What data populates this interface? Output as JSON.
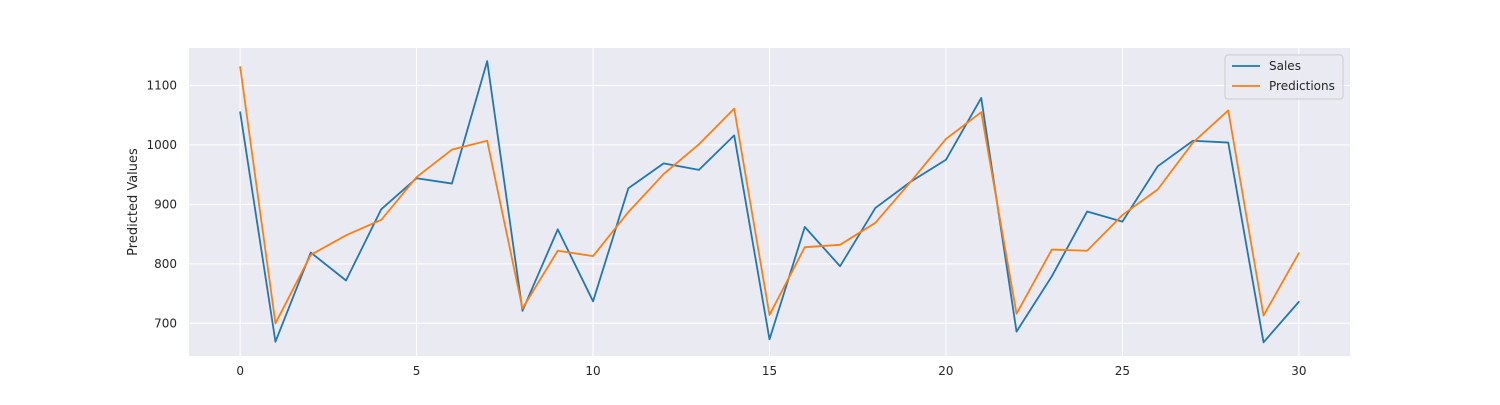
{
  "chart_data": {
    "type": "line",
    "title": "",
    "xlabel": "",
    "ylabel": "Predicted Values",
    "xlim": [
      -1.45,
      31.45
    ],
    "ylim": [
      645,
      1163
    ],
    "x_ticks": [
      0,
      5,
      10,
      15,
      20,
      25,
      30
    ],
    "y_ticks": [
      700,
      800,
      900,
      1000,
      1100
    ],
    "grid": true,
    "legend_position": "top-right",
    "x": [
      0,
      1,
      2,
      3,
      4,
      5,
      6,
      7,
      8,
      9,
      10,
      11,
      12,
      13,
      14,
      15,
      16,
      17,
      18,
      19,
      20,
      21,
      22,
      23,
      24,
      25,
      26,
      27,
      28,
      29,
      30
    ],
    "series": [
      {
        "name": "Sales",
        "color": "#1f77b4",
        "values": [
          1055,
          669,
          819,
          772,
          892,
          944,
          935,
          1141,
          721,
          858,
          737,
          927,
          969,
          958,
          1016,
          673,
          862,
          796,
          894,
          938,
          975,
          1079,
          686,
          779,
          888,
          871,
          964,
          1007,
          1004,
          668,
          736
        ]
      },
      {
        "name": "Predictions",
        "color": "#ff7f0e",
        "values": [
          1131,
          700,
          815,
          848,
          874,
          946,
          992,
          1007,
          725,
          822,
          813,
          887,
          951,
          1001,
          1061,
          714,
          828,
          832,
          869,
          938,
          1010,
          1055,
          716,
          824,
          822,
          882,
          925,
          1004,
          1058,
          713,
          818
        ]
      }
    ],
    "plot_background": "#eaeaf2",
    "grid_color": "#ffffff"
  }
}
